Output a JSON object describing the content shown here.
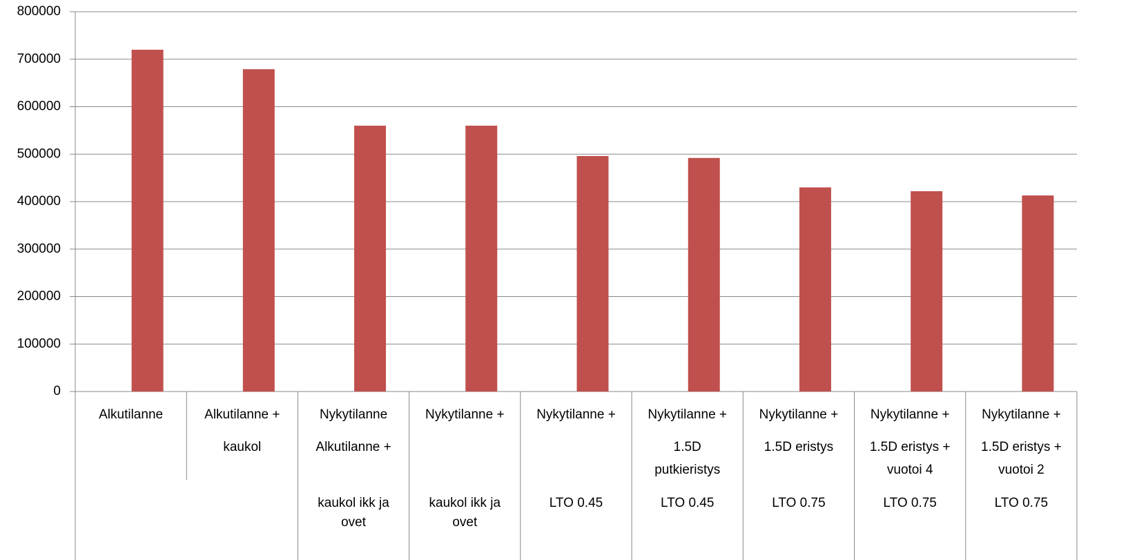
{
  "chart_data": {
    "type": "bar",
    "categories": [
      [
        "Alkutilanne"
      ],
      [
        "Alkutilanne +",
        "kaukol"
      ],
      [
        "Nykytilanne",
        "Alkutilanne +",
        "kaukol ikk ja",
        "ovet"
      ],
      [
        "Nykytilanne +",
        "kaukol ikk ja",
        "ovet"
      ],
      [
        "Nykytilanne +",
        "LTO 0.45"
      ],
      [
        "Nykytilanne +",
        "1.5D",
        "putkieristys",
        "LTO 0.45"
      ],
      [
        "Nykytilanne +",
        "1.5D eristys",
        "LTO 0.75"
      ],
      [
        "Nykytilanne +",
        "1.5D eristys +",
        "vuotoi 4",
        "LTO 0.75"
      ],
      [
        "Nykytilanne +",
        "1.5D eristys +",
        "vuotoi 2",
        "LTO 0.75"
      ]
    ],
    "values": [
      720000,
      679000,
      560000,
      560000,
      496000,
      492000,
      430000,
      422000,
      413000
    ],
    "color": "#c0504d",
    "ylim": [
      0,
      800000
    ],
    "yticks": [
      0,
      100000,
      200000,
      300000,
      400000,
      500000,
      600000,
      700000,
      800000
    ],
    "grid": true
  }
}
